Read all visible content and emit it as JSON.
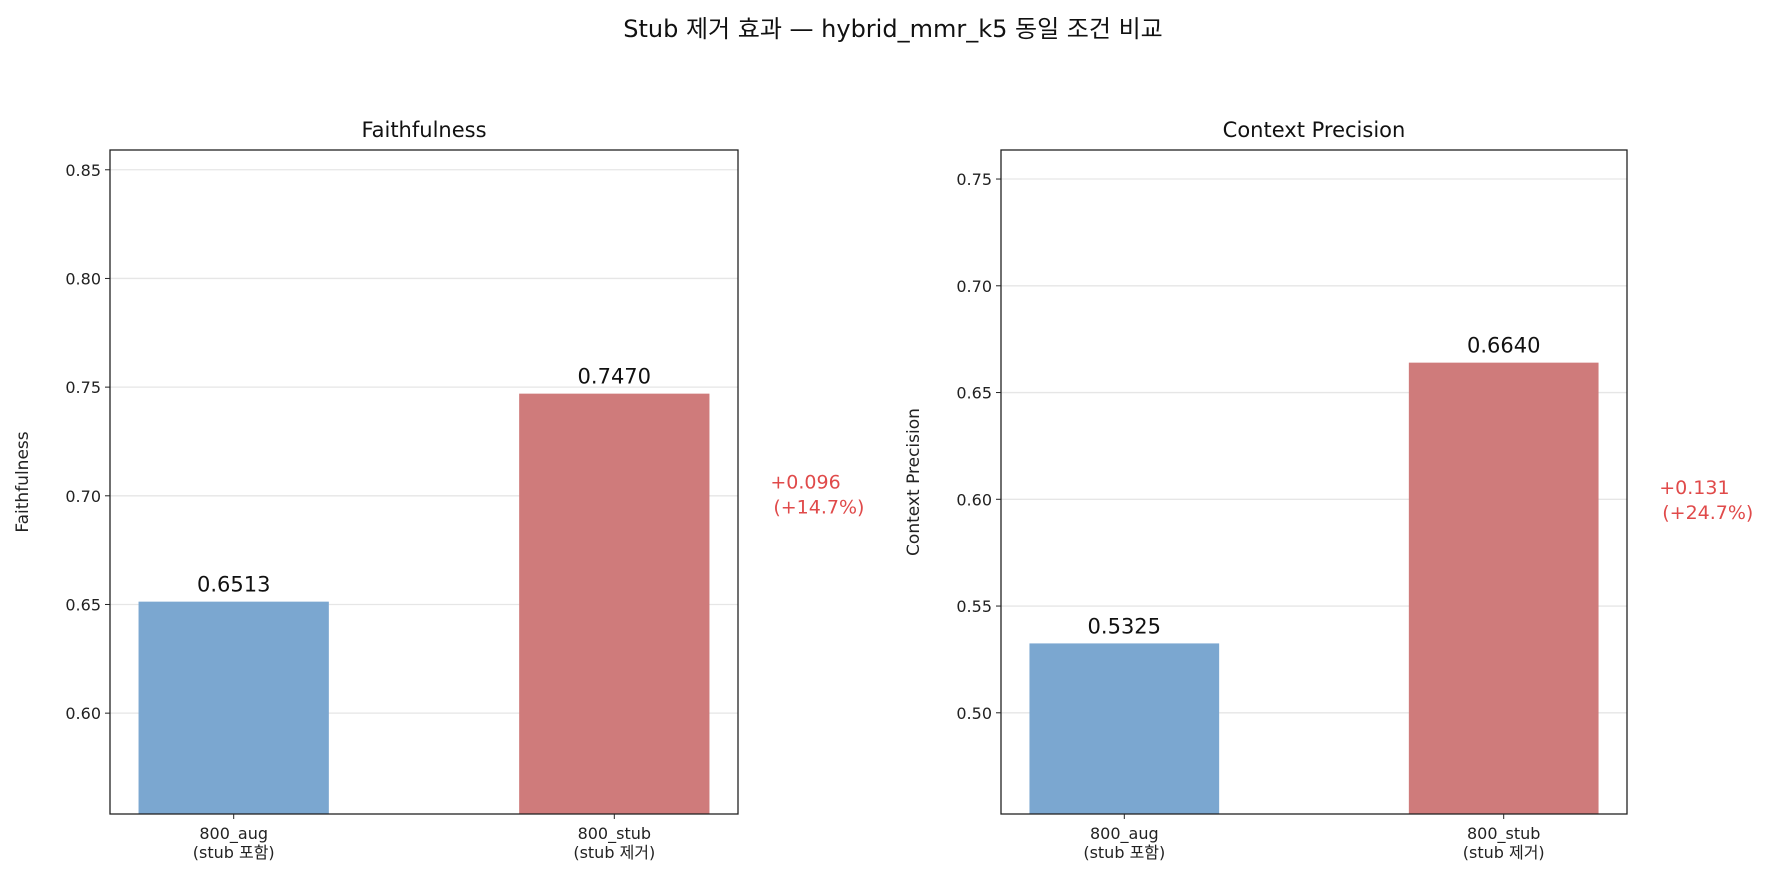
{
  "title": "Stub 제거 효과 — hybrid_mmr_k5 동일 조건 비교",
  "chart_data": [
    {
      "type": "bar",
      "title": "Faithfulness",
      "ylabel": "Faithfulness",
      "xlabel": "",
      "categories": [
        "800_aug\n(stub 포함)",
        "800_stub\n(stub 제거)"
      ],
      "category_lines": [
        [
          "800_aug",
          "(stub 포함)"
        ],
        [
          "800_stub",
          "(stub 제거)"
        ]
      ],
      "values": [
        0.6513,
        0.747
      ],
      "data_labels": [
        "0.6513",
        "0.7470"
      ],
      "colors": [
        "#7ba7d0",
        "#cf7b7b"
      ],
      "ylim": [
        0.5536,
        0.8591
      ],
      "yticks": [
        0.6,
        0.65,
        0.7,
        0.75,
        0.8,
        0.85
      ],
      "ytick_labels": [
        "0.60",
        "0.65",
        "0.70",
        "0.75",
        "0.80",
        "0.85"
      ],
      "grid": "y",
      "annotation": [
        "+0.096",
        "(+14.7%)"
      ],
      "annotation_color": "#e04a4a"
    },
    {
      "type": "bar",
      "title": "Context Precision",
      "ylabel": "Context Precision",
      "xlabel": "",
      "categories": [
        "800_aug\n(stub 포함)",
        "800_stub\n(stub 제거)"
      ],
      "category_lines": [
        [
          "800_aug",
          "(stub 포함)"
        ],
        [
          "800_stub",
          "(stub 제거)"
        ]
      ],
      "values": [
        0.5325,
        0.664
      ],
      "data_labels": [
        "0.5325",
        "0.6640"
      ],
      "colors": [
        "#7ba7d0",
        "#cf7b7b"
      ],
      "ylim": [
        0.4526,
        0.7636
      ],
      "yticks": [
        0.5,
        0.55,
        0.6,
        0.65,
        0.7,
        0.75
      ],
      "ytick_labels": [
        "0.50",
        "0.55",
        "0.60",
        "0.65",
        "0.70",
        "0.75"
      ],
      "grid": "y",
      "annotation": [
        "+0.131",
        "(+24.7%)"
      ],
      "annotation_color": "#e04a4a"
    }
  ]
}
